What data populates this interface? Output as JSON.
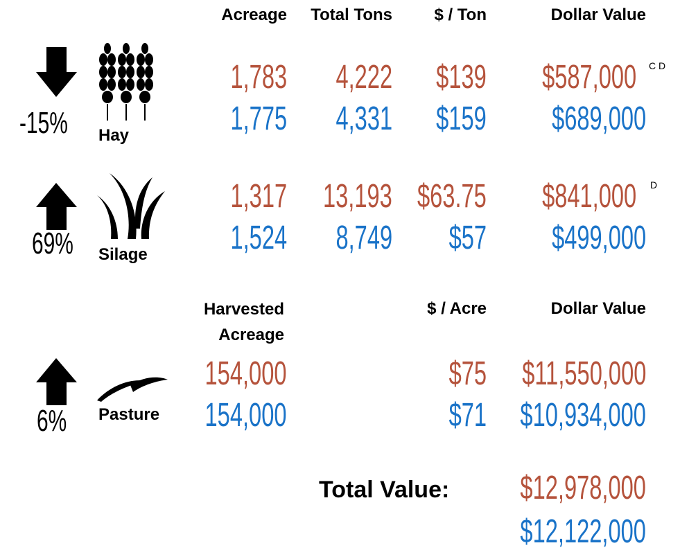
{
  "headers": [
    "Acreage",
    "Total Tons",
    "$ / Ton",
    "Dollar Value"
  ],
  "crops": [
    {
      "name": "Hay",
      "change": "-15%",
      "note": "C D",
      "rows": [
        [
          "1,783",
          "4,222",
          "$139",
          "$587,000"
        ],
        [
          "1,775",
          "4,331",
          "$159",
          "$689,000"
        ]
      ]
    },
    {
      "name": "Silage",
      "change": "69%",
      "note": "D",
      "rows": [
        [
          "1,317",
          "13,193",
          "$63.75",
          "$841,000"
        ],
        [
          "1,524",
          "8,749",
          "$57",
          "$499,000"
        ]
      ]
    }
  ],
  "pasture": {
    "name": "Pasture",
    "change": "6%",
    "headers": [
      "Harvested Acreage",
      "$ / Acre",
      "Dollar Value"
    ],
    "rows": [
      [
        "154,000",
        "$75",
        "$11,550,000"
      ],
      [
        "154,000",
        "$71",
        "$10,934,000"
      ]
    ]
  },
  "total": {
    "label": "Total Value:",
    "values": [
      "$12,978,000",
      "$12,122,000"
    ]
  }
}
